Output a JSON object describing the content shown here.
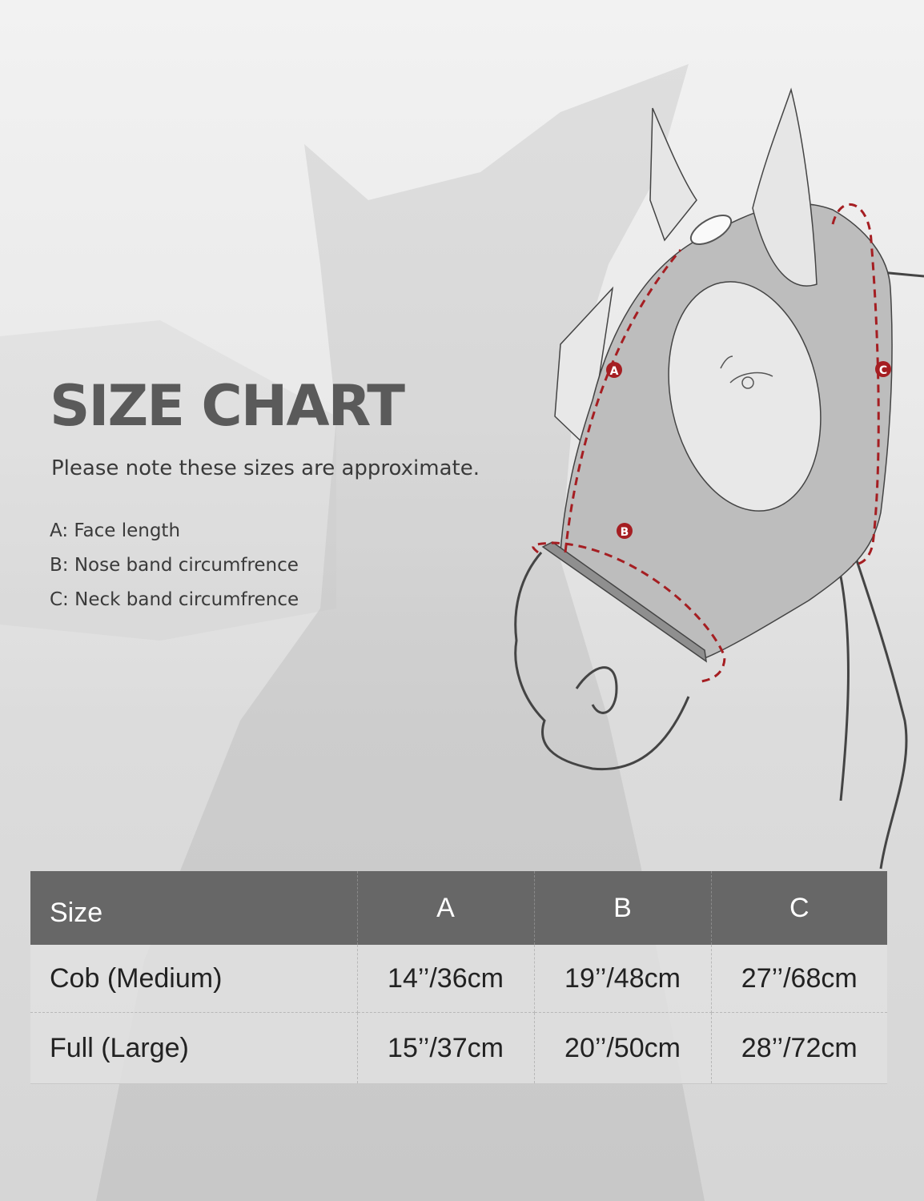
{
  "title": "SIZE CHART",
  "note": "Please note these sizes are approximate.",
  "legend": [
    "A: Face length",
    "B: Nose band circumfrence",
    "C: Neck band circumfrence"
  ],
  "diagram": {
    "labels": [
      "A",
      "B",
      "C"
    ],
    "arrow_color": "#a51e22",
    "mask_color": "#bdbdbd"
  },
  "table": {
    "headers": [
      "Size",
      "A",
      "B",
      "C"
    ],
    "rows": [
      [
        "Cob (Medium)",
        "14’’/36cm",
        "19’’/48cm",
        "27’’/68cm"
      ],
      [
        "Full (Large)",
        "15’’/37cm",
        "20’’/50cm",
        "28’’/72cm"
      ]
    ],
    "header_color": "#676767"
  }
}
